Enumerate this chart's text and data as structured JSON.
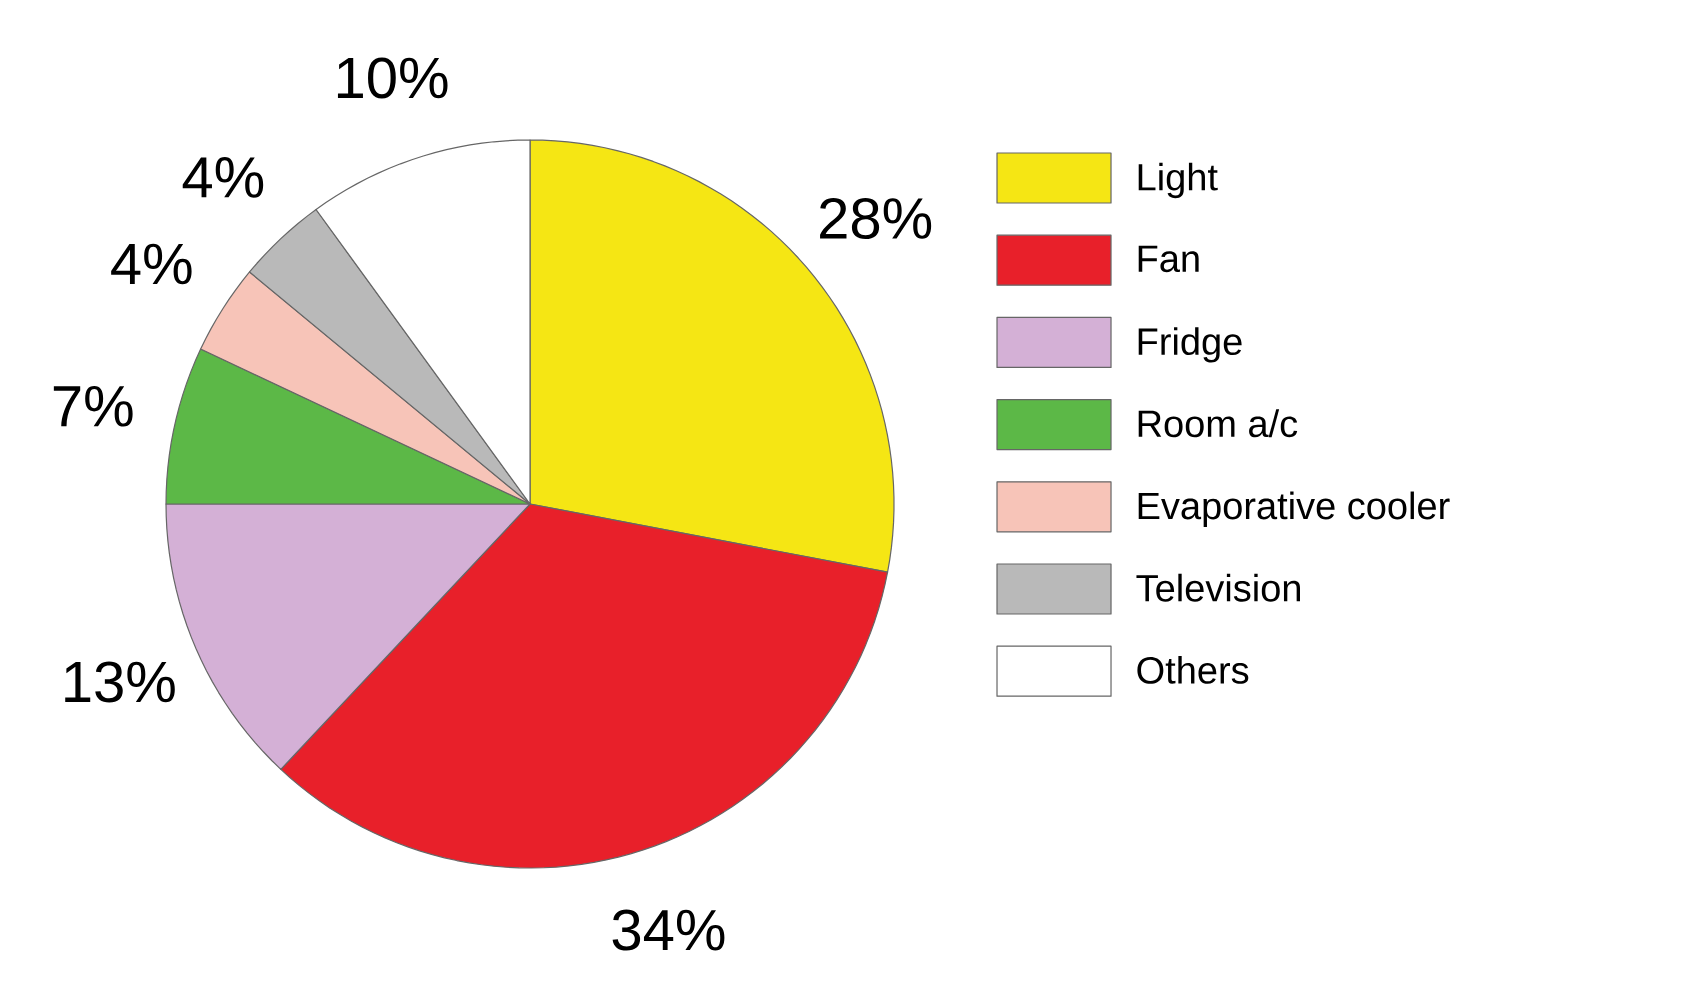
{
  "chart_data": {
    "type": "pie",
    "categories": [
      "Light",
      "Fan",
      "Fridge",
      "Room a/c",
      "Evaporative cooler",
      "Television",
      "Others"
    ],
    "values": [
      28,
      34,
      13,
      7,
      4,
      4,
      10
    ],
    "value_labels": [
      "28%",
      "34%",
      "13%",
      "7%",
      "4%",
      "4%",
      "10%"
    ],
    "colors": [
      "#f5e614",
      "#e8202a",
      "#d4b0d6",
      "#5cb847",
      "#f7c4b8",
      "#b9b9b9",
      "#ffffff"
    ],
    "legend": "right"
  }
}
